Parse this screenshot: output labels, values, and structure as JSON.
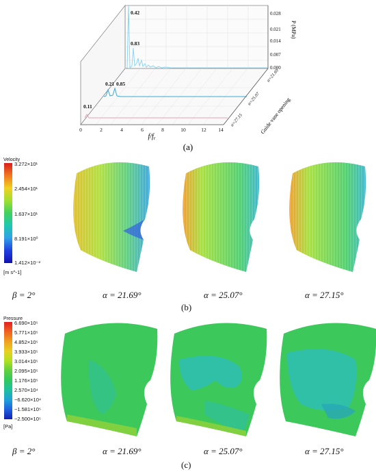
{
  "figure": {
    "panel_a": {
      "label": "(a)",
      "y_axis_title": "P (MPa)",
      "y_ticks": [
        "0.028",
        "0.021",
        "0.014",
        "0.007",
        "0.000"
      ],
      "x_axis_title": "f/f",
      "x_axis_sub": "r",
      "x_ticks": [
        "0",
        "2",
        "4",
        "6",
        "8",
        "10",
        "12",
        "14"
      ],
      "depth_axis_title": "Guide vane opening",
      "series_labels": [
        "α=21.69",
        "α=25.07",
        "α=27.15"
      ],
      "peak_labels": [
        "0.42",
        "0.83",
        "0.21",
        "0.85",
        "0.11"
      ]
    },
    "panel_b": {
      "label": "(b)",
      "legend": {
        "title": "Velocity",
        "ticks": [
          "3.272×10¹",
          "2.454×10¹",
          "1.637×10¹",
          "8.191×10⁰",
          "1.412×10⁻²"
        ],
        "unit": "[m s^-1]"
      },
      "captions": {
        "beta": "β = 2°",
        "c1": "α = 21.69°",
        "c2": "α = 25.07°",
        "c3": "α = 27.15°"
      }
    },
    "panel_c": {
      "label": "(c)",
      "legend": {
        "title": "Pressure",
        "ticks": [
          "6.690×10⁵",
          "5.771×10⁵",
          "4.852×10⁵",
          "3.933×10⁵",
          "3.014×10⁵",
          "2.095×10⁵",
          "1.176×10⁵",
          "2.570×10⁴",
          "−6.620×10⁴",
          "−1.581×10⁵",
          "−2.500×10⁵"
        ],
        "unit": "[Pa]"
      },
      "captions": {
        "beta": "β = 2°",
        "c1": "α = 21.69°",
        "c2": "α = 25.07°",
        "c3": "α = 27.15°"
      }
    }
  },
  "chart_data": {
    "type": "line",
    "title": "",
    "xlabel": "f/fr",
    "ylabel": "P (MPa)",
    "zlabel": "Guide vane opening",
    "xlim": [
      0,
      15
    ],
    "ylim": [
      0,
      0.028
    ],
    "series": [
      {
        "name": "α=21.69",
        "peaks": [
          {
            "x": 0.42,
            "label": "0.42",
            "y": 0.0275
          },
          {
            "x": 0.83,
            "label": "0.83",
            "y": 0.012
          }
        ]
      },
      {
        "name": "α=25.07",
        "peaks": [
          {
            "x": 0.21,
            "label": "0.21",
            "y": 0.005
          },
          {
            "x": 0.85,
            "label": "0.85",
            "y": 0.005
          }
        ]
      },
      {
        "name": "α=27.15",
        "peaks": [
          {
            "x": 0.11,
            "label": "0.11",
            "y": 0.001
          }
        ]
      }
    ],
    "colors": {
      "top": "#8cd6f0",
      "middle": "#3aa7d8",
      "bottom": "#e8a0b0"
    }
  }
}
